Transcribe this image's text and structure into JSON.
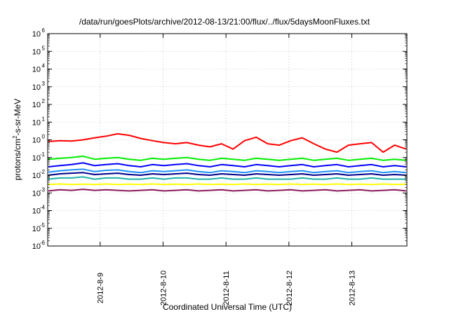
{
  "chart_data": {
    "type": "line",
    "title": "/data/run/goesPlots/archive/2012-08-13/21:00/flux/../flux/5daysMoonFluxes.txt",
    "xlabel": "Coordinated Universal Time (UTC)",
    "ylabel": {
      "pre": "protons/cm",
      "sup": "2",
      "post": "-s-sr-MeV"
    },
    "x_ticks": [
      "2012-8-9",
      "2012-8-10",
      "2012-8-11",
      "2012-8-12",
      "2012-8-13"
    ],
    "x_range": [
      "2012-08-08T04:00",
      "2012-08-13T21:00"
    ],
    "y_scale": "log",
    "y_ticks": [
      {
        "exp": -6,
        "label": "10",
        "sup": "-6"
      },
      {
        "exp": -5,
        "label": "10",
        "sup": "-5"
      },
      {
        "exp": -4,
        "label": "10",
        "sup": "-4"
      },
      {
        "exp": -3,
        "label": "10",
        "sup": "-3"
      },
      {
        "exp": -2,
        "label": "10",
        "sup": "-2"
      },
      {
        "exp": -1,
        "label": "10",
        "sup": "-1"
      },
      {
        "exp": 0,
        "label": "10",
        "sup": "0"
      },
      {
        "exp": 1,
        "label": "10",
        "sup": "1"
      },
      {
        "exp": 2,
        "label": "10",
        "sup": "2"
      },
      {
        "exp": 3,
        "label": "10",
        "sup": "3"
      },
      {
        "exp": 4,
        "label": "10",
        "sup": "4"
      },
      {
        "exp": 5,
        "label": "10",
        "sup": "5"
      },
      {
        "exp": 6,
        "label": "10",
        "sup": "6"
      }
    ],
    "ylim": [
      1e-06,
      1000000.0
    ],
    "grid": true,
    "series": [
      {
        "color": "#ff0000",
        "values": [
          0.8,
          0.9,
          0.85,
          1.0,
          1.3,
          1.6,
          2.2,
          1.8,
          1.2,
          0.9,
          0.7,
          0.6,
          0.7,
          0.5,
          0.4,
          0.6,
          0.3,
          0.9,
          1.4,
          0.6,
          0.5,
          0.9,
          1.3,
          0.6,
          0.3,
          0.2,
          0.5,
          0.6,
          0.7,
          0.2,
          0.5,
          0.3
        ]
      },
      {
        "color": "#00ee00",
        "values": [
          0.08,
          0.09,
          0.1,
          0.12,
          0.08,
          0.09,
          0.1,
          0.08,
          0.07,
          0.09,
          0.08,
          0.09,
          0.1,
          0.08,
          0.07,
          0.09,
          0.08,
          0.07,
          0.09,
          0.08,
          0.07,
          0.08,
          0.09,
          0.07,
          0.08,
          0.09,
          0.07,
          0.08,
          0.09,
          0.07,
          0.08,
          0.07
        ]
      },
      {
        "color": "#0000ff",
        "values": [
          0.03,
          0.035,
          0.04,
          0.05,
          0.035,
          0.04,
          0.045,
          0.035,
          0.03,
          0.04,
          0.035,
          0.04,
          0.045,
          0.035,
          0.03,
          0.04,
          0.035,
          0.03,
          0.04,
          0.035,
          0.03,
          0.035,
          0.04,
          0.03,
          0.035,
          0.04,
          0.03,
          0.035,
          0.04,
          0.03,
          0.035,
          0.03
        ]
      },
      {
        "color": "#1e90ff",
        "values": [
          0.015,
          0.018,
          0.02,
          0.022,
          0.016,
          0.019,
          0.02,
          0.016,
          0.014,
          0.018,
          0.016,
          0.018,
          0.02,
          0.016,
          0.014,
          0.018,
          0.016,
          0.014,
          0.018,
          0.016,
          0.014,
          0.016,
          0.018,
          0.014,
          0.016,
          0.018,
          0.014,
          0.016,
          0.018,
          0.014,
          0.016,
          0.014
        ]
      },
      {
        "color": "#00008b",
        "values": [
          0.01,
          0.012,
          0.013,
          0.014,
          0.011,
          0.012,
          0.013,
          0.011,
          0.01,
          0.012,
          0.011,
          0.012,
          0.013,
          0.011,
          0.01,
          0.012,
          0.011,
          0.01,
          0.012,
          0.011,
          0.01,
          0.011,
          0.012,
          0.01,
          0.011,
          0.012,
          0.01,
          0.011,
          0.012,
          0.01,
          0.011,
          0.01
        ]
      },
      {
        "color": "#20b2aa",
        "values": [
          0.006,
          0.007,
          0.007,
          0.008,
          0.006,
          0.007,
          0.007,
          0.006,
          0.006,
          0.007,
          0.006,
          0.007,
          0.007,
          0.006,
          0.006,
          0.007,
          0.006,
          0.006,
          0.007,
          0.006,
          0.006,
          0.006,
          0.007,
          0.006,
          0.006,
          0.007,
          0.006,
          0.006,
          0.007,
          0.006,
          0.006,
          0.006
        ]
      },
      {
        "color": "#ffff00",
        "values": [
          0.003,
          0.0032,
          0.003,
          0.0031,
          0.003,
          0.0032,
          0.003,
          0.0031,
          0.003,
          0.0032,
          0.003,
          0.0031,
          0.003,
          0.0032,
          0.003,
          0.0031,
          0.003,
          0.0032,
          0.003,
          0.0031,
          0.003,
          0.0032,
          0.003,
          0.0031,
          0.003,
          0.0032,
          0.003,
          0.0031,
          0.003,
          0.0032,
          0.003,
          0.0031
        ]
      },
      {
        "color": "#8b1a5a",
        "values": [
          0.0013,
          0.0015,
          0.0014,
          0.0016,
          0.0014,
          0.0015,
          0.0014,
          0.0013,
          0.0014,
          0.0015,
          0.0013,
          0.0014,
          0.0015,
          0.0013,
          0.0014,
          0.0015,
          0.0013,
          0.0014,
          0.0015,
          0.0013,
          0.0014,
          0.0015,
          0.0013,
          0.0014,
          0.0015,
          0.0013,
          0.0014,
          0.0015,
          0.0013,
          0.0014,
          0.0015,
          0.0013
        ]
      }
    ]
  }
}
